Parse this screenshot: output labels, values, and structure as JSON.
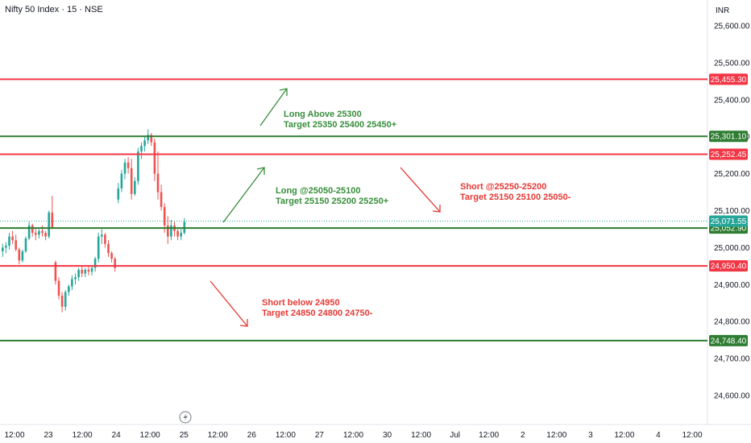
{
  "header": {
    "title": "Nifty 50 Index · 15 · NSE",
    "currency": "INR"
  },
  "colors": {
    "up": "#26a69a",
    "down": "#ef5350",
    "resistance": "#f23645",
    "support": "#2e7d32",
    "note_green": "#388e3c",
    "note_red": "#e53935"
  },
  "chart_data": {
    "type": "candlestick",
    "symbol": "Nifty 50 Index",
    "interval": "15",
    "exchange": "NSE",
    "ylim": [
      24520,
      25650
    ],
    "y_ticks": [
      "25,600.00",
      "25,500.00",
      "25,400.00",
      "25,300.00",
      "25,200.00",
      "25,100.00",
      "25,000.00",
      "24,900.00",
      "24,800.00",
      "24,700.00",
      "24,600.00"
    ],
    "y_tick_values": [
      25600,
      25500,
      25400,
      25300,
      25200,
      25100,
      25000,
      24900,
      24800,
      24700,
      24600
    ],
    "x_ticks": [
      "12:00",
      "23",
      "12:00",
      "24",
      "12:00",
      "25",
      "12:00",
      "26",
      "12:00",
      "27",
      "12:00",
      "30",
      "12:00",
      "Jul",
      "12:00",
      "2",
      "12:00",
      "3",
      "12:00",
      "4",
      "12:00"
    ],
    "current_price": "25,071.55",
    "current_price_value": 25071.55,
    "levels": [
      {
        "value": 25455.3,
        "label": "25,455.30",
        "kind": "resistance"
      },
      {
        "value": 25301.1,
        "label": "25,301.10",
        "kind": "support"
      },
      {
        "value": 25252.45,
        "label": "25,252.45",
        "kind": "resistance"
      },
      {
        "value": 25052.9,
        "label": "25,052.90",
        "kind": "support"
      },
      {
        "value": 24950.4,
        "label": "24,950.40",
        "kind": "resistance"
      },
      {
        "value": 24748.4,
        "label": "24,748.40",
        "kind": "support"
      }
    ],
    "annotations": [
      {
        "lines": [
          "Long Above 25300",
          "Target 25350 25400 25450+"
        ],
        "color": "green"
      },
      {
        "lines": [
          "Long @25050-25100",
          "Target 25150 25200 25250+"
        ],
        "color": "green"
      },
      {
        "lines": [
          "Short  @25250-25200",
          "Target 25150 25100 25050-"
        ],
        "color": "red"
      },
      {
        "lines": [
          "Short below 24950",
          "Target 24850 24800 24750-"
        ],
        "color": "red"
      }
    ],
    "candles": [
      [
        24990,
        25010,
        24975,
        25000
      ],
      [
        25000,
        25015,
        24985,
        25005
      ],
      [
        25005,
        25040,
        24995,
        25030
      ],
      [
        25030,
        25045,
        25010,
        25020
      ],
      [
        25020,
        25035,
        24990,
        24995
      ],
      [
        24995,
        25000,
        24955,
        24965
      ],
      [
        24965,
        24995,
        24960,
        24990
      ],
      [
        24990,
        25030,
        24985,
        25025
      ],
      [
        25025,
        25070,
        25020,
        25060
      ],
      [
        25060,
        25065,
        25030,
        25040
      ],
      [
        25040,
        25050,
        25020,
        25035
      ],
      [
        25035,
        25050,
        25025,
        25045
      ],
      [
        25045,
        25060,
        25030,
        25040
      ],
      [
        25040,
        25045,
        25020,
        25030
      ],
      [
        25030,
        25100,
        25025,
        25095
      ],
      [
        25095,
        25140,
        25050,
        25055
      ],
      [
        24960,
        24965,
        24900,
        24910
      ],
      [
        24910,
        24920,
        24860,
        24870
      ],
      [
        24870,
        24880,
        24825,
        24840
      ],
      [
        24840,
        24885,
        24830,
        24880
      ],
      [
        24880,
        24900,
        24870,
        24895
      ],
      [
        24895,
        24925,
        24885,
        24915
      ],
      [
        24915,
        24930,
        24900,
        24920
      ],
      [
        24920,
        24945,
        24910,
        24940
      ],
      [
        24940,
        24950,
        24920,
        24930
      ],
      [
        24930,
        24945,
        24920,
        24940
      ],
      [
        24940,
        24950,
        24925,
        24935
      ],
      [
        24935,
        24950,
        24925,
        24945
      ],
      [
        24945,
        24975,
        24935,
        24970
      ],
      [
        24970,
        25040,
        24960,
        25030
      ],
      [
        25030,
        25050,
        25010,
        25035
      ],
      [
        25035,
        25040,
        25000,
        25010
      ],
      [
        25010,
        25020,
        24975,
        24985
      ],
      [
        24985,
        24990,
        24960,
        24970
      ],
      [
        24970,
        24975,
        24935,
        24945
      ],
      [
        25130,
        25175,
        25120,
        25160
      ],
      [
        25160,
        25210,
        25150,
        25200
      ],
      [
        25200,
        25240,
        25185,
        25230
      ],
      [
        25230,
        25245,
        25200,
        25215
      ],
      [
        25215,
        25240,
        25130,
        25145
      ],
      [
        25145,
        25190,
        25140,
        25180
      ],
      [
        25180,
        25270,
        25170,
        25260
      ],
      [
        25260,
        25285,
        25240,
        25275
      ],
      [
        25275,
        25300,
        25260,
        25290
      ],
      [
        25290,
        25320,
        25280,
        25305
      ],
      [
        25305,
        25310,
        25275,
        25285
      ],
      [
        25285,
        25295,
        25180,
        25200
      ],
      [
        25200,
        25260,
        25130,
        25150
      ],
      [
        25150,
        25170,
        25100,
        25110
      ],
      [
        25110,
        25120,
        25040,
        25060
      ],
      [
        25060,
        25085,
        25010,
        25030
      ],
      [
        25030,
        25075,
        25020,
        25060
      ],
      [
        25060,
        25070,
        25030,
        25045
      ],
      [
        25045,
        25050,
        25020,
        25030
      ],
      [
        25030,
        25050,
        25020,
        25040
      ],
      [
        25040,
        25080,
        25035,
        25070
      ]
    ]
  }
}
